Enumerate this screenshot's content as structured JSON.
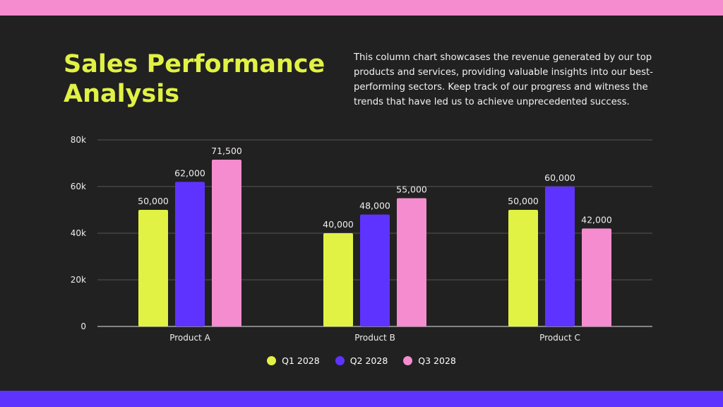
{
  "header": {
    "title": "Sales Performance Analysis",
    "description": "This column chart showcases the revenue generated by our top products and services, providing valuable insights into our best-performing sectors. Keep track of our progress and witness the trends that have led us to achieve unprecedented success."
  },
  "colors": {
    "background": "#212121",
    "top_band": "#f48ccf",
    "bottom_band": "#5f33ff"
  },
  "chart_data": {
    "type": "bar",
    "categories": [
      "Product A",
      "Product B",
      "Product C"
    ],
    "series": [
      {
        "name": "Q1 2028",
        "color": "#e1f244",
        "values": [
          50000,
          40000,
          50000
        ],
        "labels": [
          "50,000",
          "40,000",
          "50,000"
        ]
      },
      {
        "name": "Q2 2028",
        "color": "#5f33ff",
        "values": [
          62000,
          48000,
          60000
        ],
        "labels": [
          "62,000",
          "48,000",
          "60,000"
        ]
      },
      {
        "name": "Q3 2028",
        "color": "#f48ccf",
        "values": [
          71500,
          55000,
          42000
        ],
        "labels": [
          "71,500",
          "55,000",
          "42,000"
        ]
      }
    ],
    "ylim": [
      0,
      80000
    ],
    "yticks": [
      0,
      20000,
      40000,
      60000,
      80000
    ],
    "ytick_labels": [
      "0",
      "20k",
      "40k",
      "60k",
      "80k"
    ],
    "grid": true,
    "legend": "bottom"
  }
}
